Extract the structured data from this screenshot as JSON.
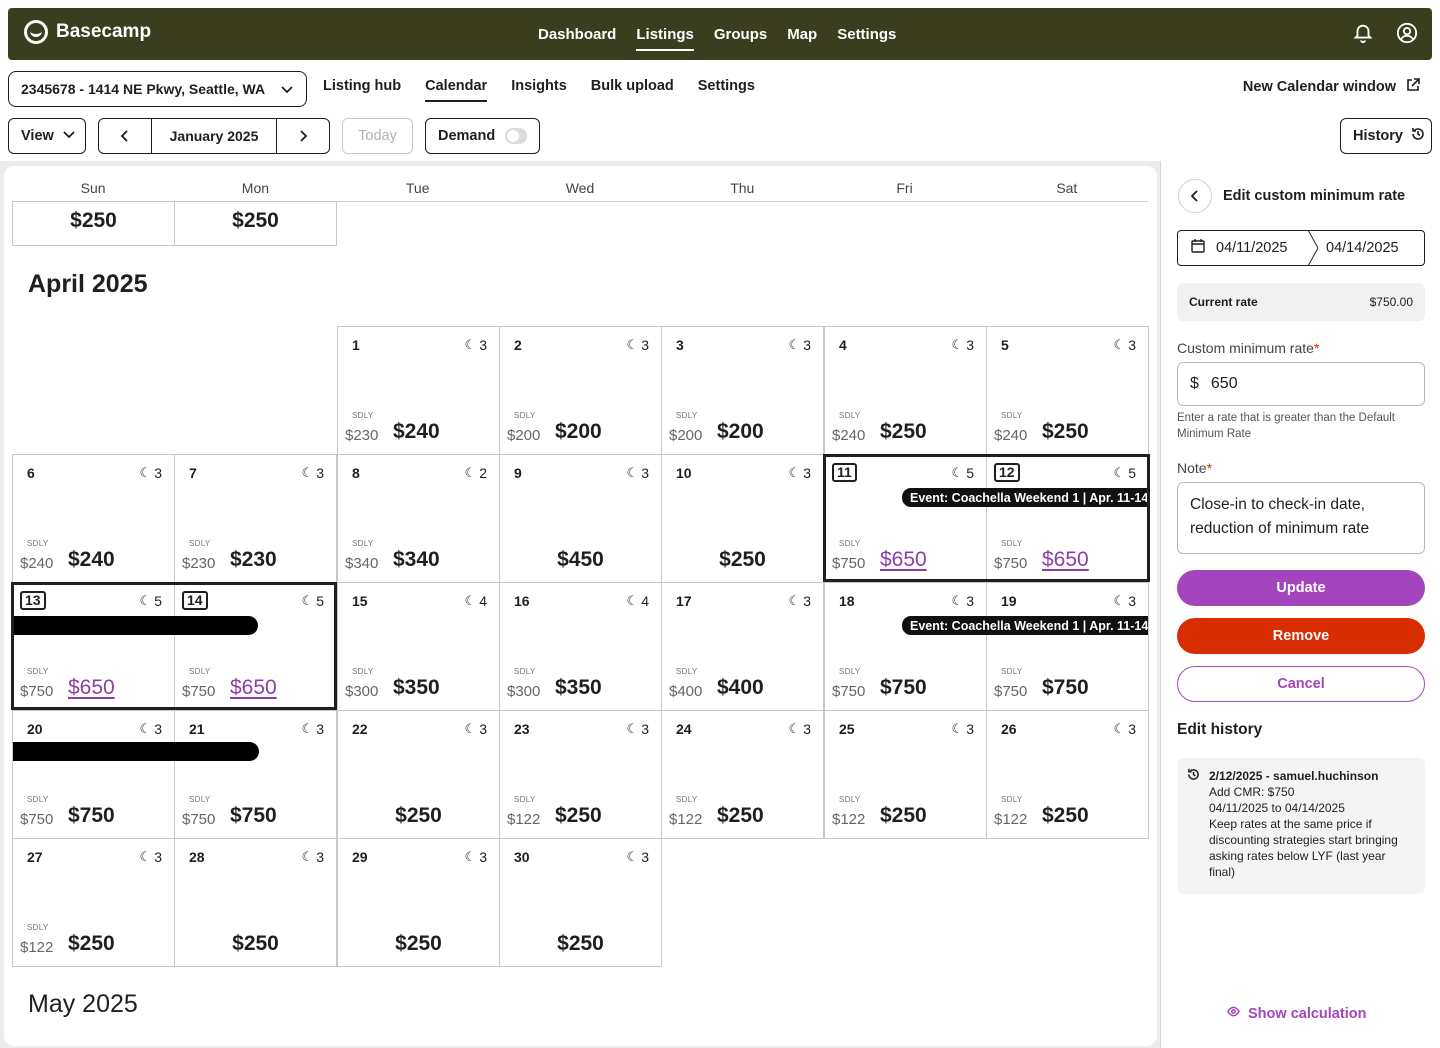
{
  "brand": {
    "name": "Basecamp"
  },
  "top_nav": [
    "Dashboard",
    "Listings",
    "Groups",
    "Map",
    "Settings"
  ],
  "top_nav_active": "Listings",
  "listing": {
    "selected": "2345678 - 1414 NE Pkwy, Seattle, WA"
  },
  "sub_nav": [
    "Listing hub",
    "Calendar",
    "Insights",
    "Bulk upload",
    "Settings"
  ],
  "sub_nav_active": "Calendar",
  "new_calendar_window": "New Calendar window",
  "toolbar": {
    "view_label": "View",
    "month_label": "January 2025",
    "today_label": "Today",
    "demand_label": "Demand",
    "demand_on": false,
    "history_label": "History"
  },
  "weekdays": [
    "Sun",
    "Mon",
    "Tue",
    "Wed",
    "Thu",
    "Fri",
    "Sat"
  ],
  "prev_week": {
    "sun_price": "$250",
    "mon_price": "$250"
  },
  "april_title": "April 2025",
  "may_title": "May 2025",
  "april_days": [
    {
      "day": "1",
      "nights": "3",
      "sdly_label": "SDLY",
      "sdly": "$230",
      "price": "$240"
    },
    {
      "day": "2",
      "nights": "3",
      "sdly_label": "SDLY",
      "sdly": "$200",
      "price": "$200"
    },
    {
      "day": "3",
      "nights": "3",
      "sdly_label": "SDLY",
      "sdly": "$200",
      "price": "$200"
    },
    {
      "day": "4",
      "nights": "3",
      "sdly_label": "SDLY",
      "sdly": "$240",
      "price": "$250"
    },
    {
      "day": "5",
      "nights": "3",
      "sdly_label": "SDLY",
      "sdly": "$240",
      "price": "$250"
    },
    {
      "day": "6",
      "nights": "3",
      "sdly_label": "SDLY",
      "sdly": "$240",
      "price": "$240"
    },
    {
      "day": "7",
      "nights": "3",
      "sdly_label": "SDLY",
      "sdly": "$230",
      "price": "$230"
    },
    {
      "day": "8",
      "nights": "2",
      "sdly_label": "SDLY",
      "sdly": "$340",
      "price": "$340"
    },
    {
      "day": "9",
      "nights": "3",
      "price": "$450"
    },
    {
      "day": "10",
      "nights": "3",
      "price": "$250"
    },
    {
      "day": "11",
      "nights": "5",
      "sdly_label": "SDLY",
      "sdly": "$750",
      "price": "$650",
      "custom": true,
      "boxed": true
    },
    {
      "day": "12",
      "nights": "5",
      "sdly_label": "SDLY",
      "sdly": "$750",
      "price": "$650",
      "custom": true,
      "boxed": true
    },
    {
      "day": "13",
      "nights": "5",
      "sdly_label": "SDLY",
      "sdly": "$750",
      "price": "$650",
      "custom": true,
      "boxed": true
    },
    {
      "day": "14",
      "nights": "5",
      "sdly_label": "SDLY",
      "sdly": "$750",
      "price": "$650",
      "custom": true,
      "boxed": true
    },
    {
      "day": "15",
      "nights": "4",
      "sdly_label": "SDLY",
      "sdly": "$300",
      "price": "$350"
    },
    {
      "day": "16",
      "nights": "4",
      "sdly_label": "SDLY",
      "sdly": "$300",
      "price": "$350"
    },
    {
      "day": "17",
      "nights": "3",
      "sdly_label": "SDLY",
      "sdly": "$400",
      "price": "$400"
    },
    {
      "day": "18",
      "nights": "3",
      "sdly_label": "SDLY",
      "sdly": "$750",
      "price": "$750"
    },
    {
      "day": "19",
      "nights": "3",
      "sdly_label": "SDLY",
      "sdly": "$750",
      "price": "$750"
    },
    {
      "day": "20",
      "nights": "3",
      "sdly_label": "SDLY",
      "sdly": "$750",
      "price": "$750"
    },
    {
      "day": "21",
      "nights": "3",
      "sdly_label": "SDLY",
      "sdly": "$750",
      "price": "$750"
    },
    {
      "day": "22",
      "nights": "3",
      "price": "$250"
    },
    {
      "day": "23",
      "nights": "3",
      "sdly_label": "SDLY",
      "sdly": "$122",
      "price": "$250"
    },
    {
      "day": "24",
      "nights": "3",
      "sdly_label": "SDLY",
      "sdly": "$122",
      "price": "$250"
    },
    {
      "day": "25",
      "nights": "3",
      "sdly_label": "SDLY",
      "sdly": "$122",
      "price": "$250"
    },
    {
      "day": "26",
      "nights": "3",
      "sdly_label": "SDLY",
      "sdly": "$122",
      "price": "$250"
    },
    {
      "day": "27",
      "nights": "3",
      "sdly_label": "SDLY",
      "sdly": "$122",
      "price": "$250"
    },
    {
      "day": "28",
      "nights": "3",
      "price": "$250"
    },
    {
      "day": "29",
      "nights": "3",
      "price": "$250"
    },
    {
      "day": "30",
      "nights": "3",
      "price": "$250"
    }
  ],
  "event_label": "Event: Coachella Weekend 1 | Apr. 11-14",
  "panel": {
    "title": "Edit custom minimum rate",
    "start_date": "04/11/2025",
    "end_date": "04/14/2025",
    "current_rate_label": "Current rate",
    "current_rate_value": "$750.00",
    "cmr_label": "Custom minimum rate",
    "currency": "$",
    "cmr_value": "650",
    "hint": "Enter a rate that is greater than the Default Minimum Rate",
    "note_label": "Note",
    "note_value": "Close-in to check-in date, reduction of minimum rate",
    "update_label": "Update",
    "remove_label": "Remove",
    "cancel_label": "Cancel",
    "edit_history_title": "Edit history",
    "history_entry": {
      "head": "2/12/2025 - samuel.huchinson",
      "line1": "Add CMR: $750",
      "line2": "04/11/2025 to 04/14/2025",
      "line3": "Keep rates at the same price if discounting strategies start bringing asking rates below LYF (last year final)"
    },
    "show_calculation": "Show calculation"
  },
  "colors": {
    "topbar": "#3a3d1e",
    "accent": "#a445bd",
    "danger": "#d92c00",
    "custom_price": "#8a3fa8"
  }
}
